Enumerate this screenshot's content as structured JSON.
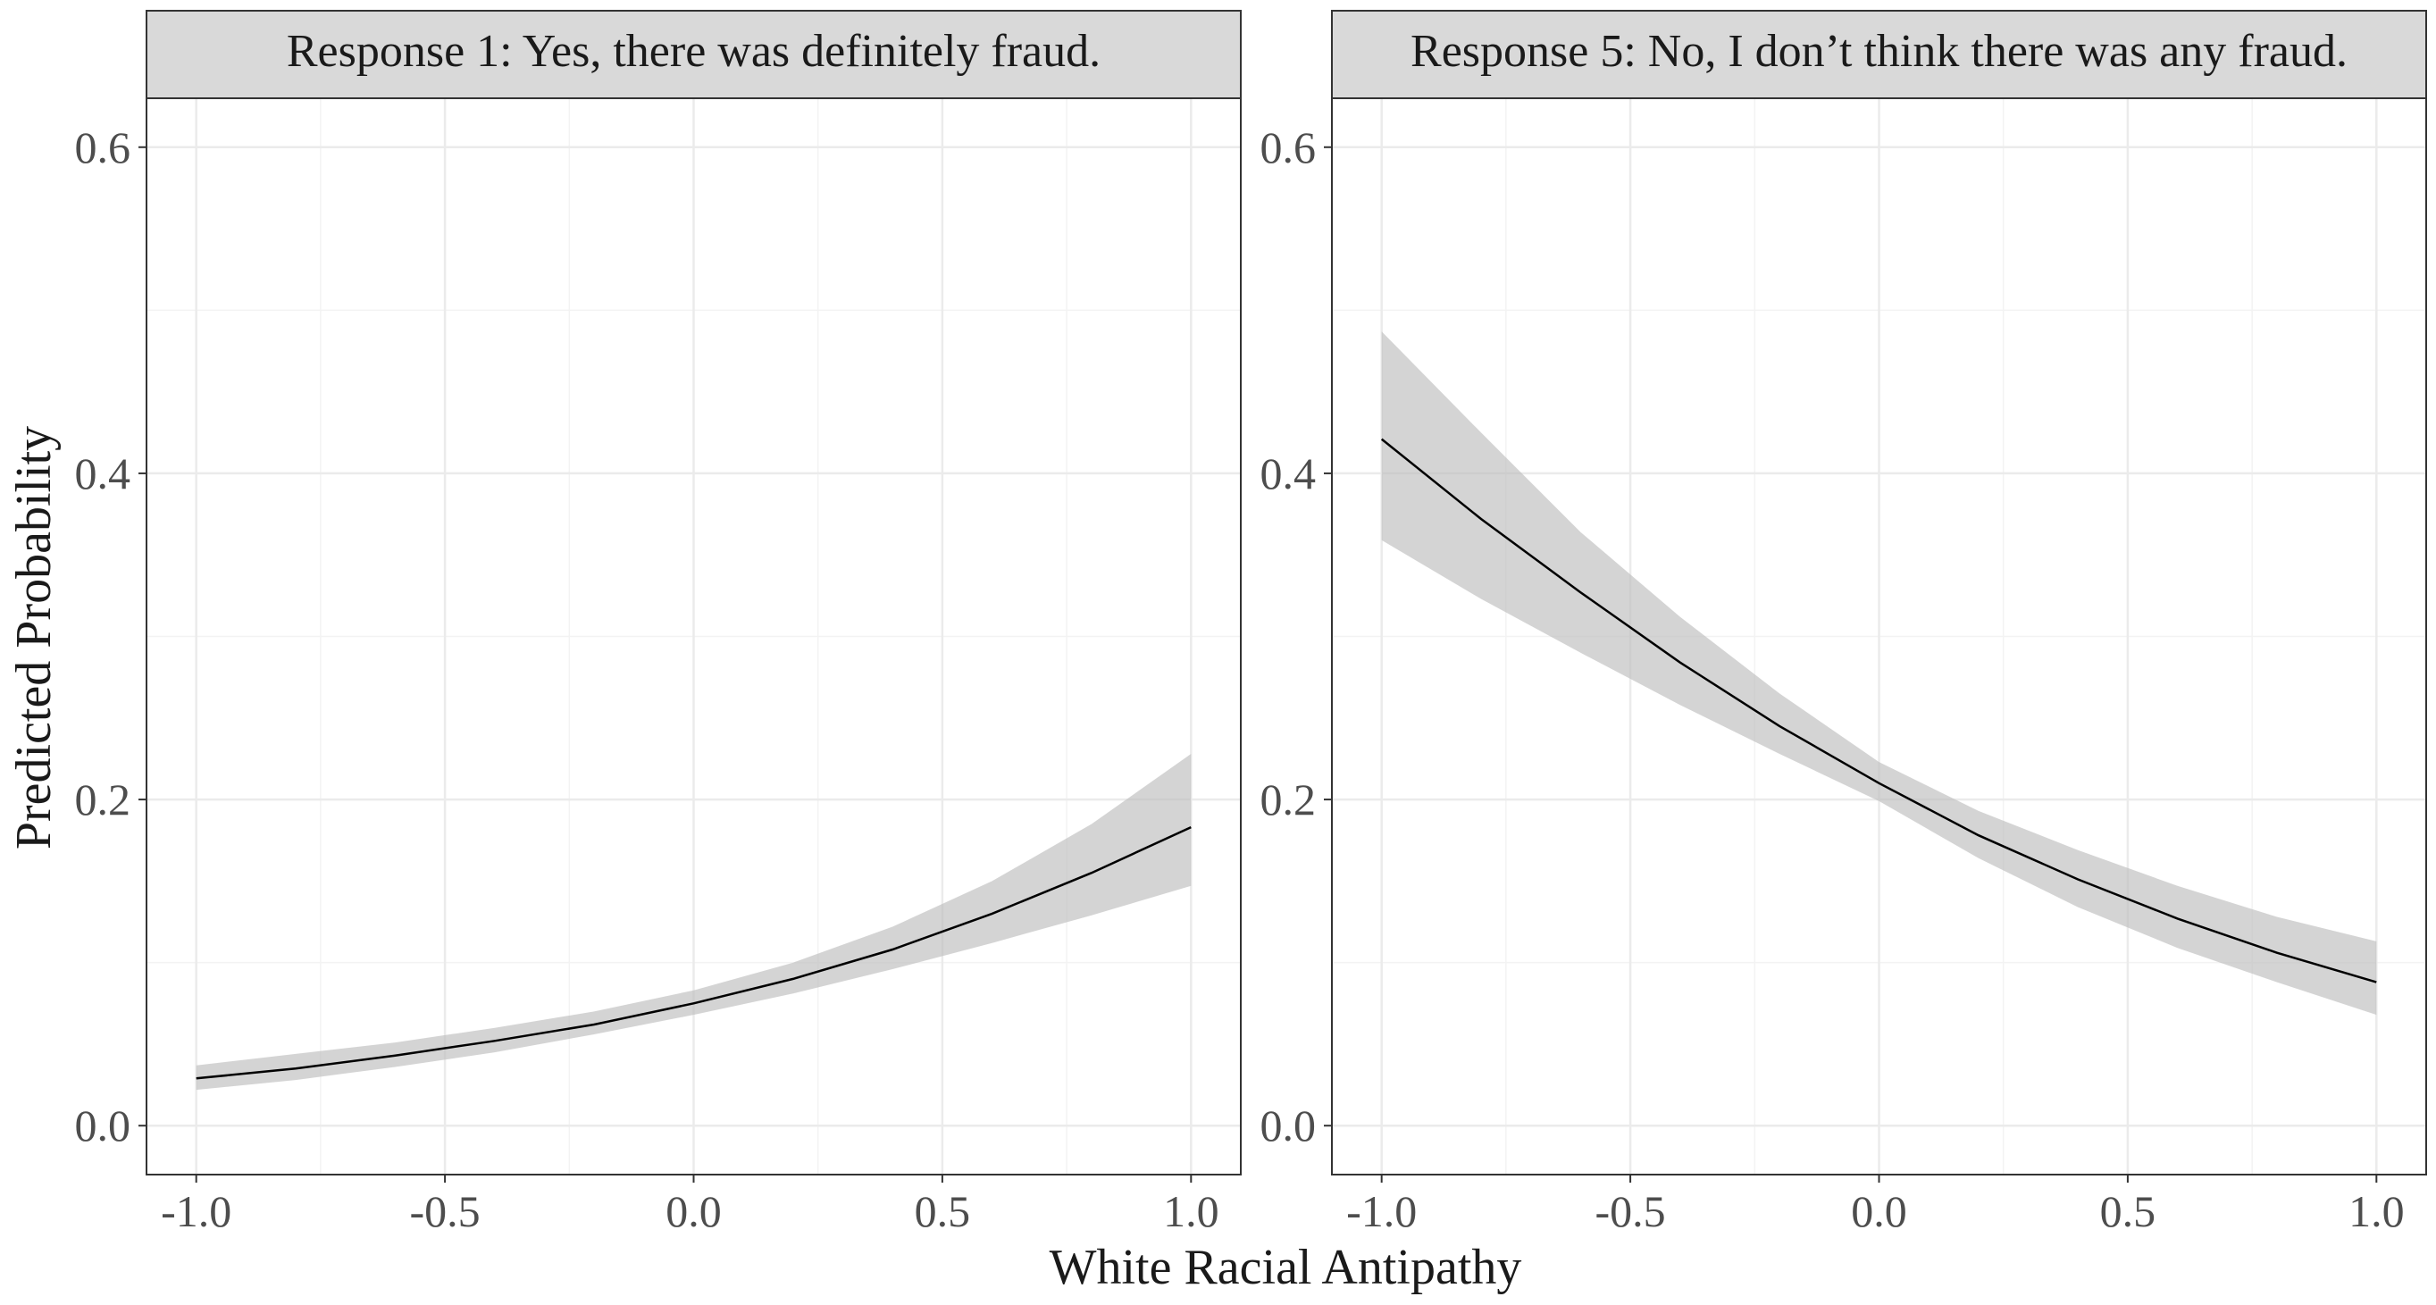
{
  "chart_data": {
    "type": "line",
    "xlabel": "White Racial Antipathy",
    "ylabel": "Predicted Probability",
    "x_ticks": [
      "-1.0",
      "-0.5",
      "0.0",
      "0.5",
      "1.0"
    ],
    "y_ticks": [
      "0.0",
      "0.2",
      "0.4",
      "0.6"
    ],
    "xlim": [
      -1.1,
      1.1
    ],
    "ylim": [
      -0.03,
      0.63
    ],
    "grid": true,
    "panels": [
      {
        "title": "Response 1: Yes, there was definitely fraud.",
        "x": [
          -1.0,
          -0.8,
          -0.6,
          -0.4,
          -0.2,
          0.0,
          0.2,
          0.4,
          0.6,
          0.8,
          1.0
        ],
        "y": [
          0.029,
          0.035,
          0.043,
          0.052,
          0.062,
          0.075,
          0.09,
          0.108,
          0.13,
          0.155,
          0.183
        ],
        "lower": [
          0.022,
          0.028,
          0.036,
          0.045,
          0.056,
          0.068,
          0.081,
          0.096,
          0.112,
          0.129,
          0.147
        ],
        "upper": [
          0.037,
          0.044,
          0.051,
          0.06,
          0.07,
          0.083,
          0.1,
          0.122,
          0.15,
          0.185,
          0.228
        ]
      },
      {
        "title": "Response 5: No, I don’t think there was any fraud.",
        "x": [
          -1.0,
          -0.8,
          -0.6,
          -0.4,
          -0.2,
          0.0,
          0.2,
          0.4,
          0.6,
          0.8,
          1.0
        ],
        "y": [
          0.421,
          0.372,
          0.327,
          0.284,
          0.245,
          0.21,
          0.178,
          0.151,
          0.127,
          0.106,
          0.088
        ],
        "lower": [
          0.359,
          0.323,
          0.29,
          0.258,
          0.228,
          0.199,
          0.164,
          0.134,
          0.109,
          0.088,
          0.068
        ],
        "upper": [
          0.487,
          0.425,
          0.364,
          0.312,
          0.265,
          0.223,
          0.193,
          0.169,
          0.147,
          0.128,
          0.113
        ]
      }
    ]
  }
}
